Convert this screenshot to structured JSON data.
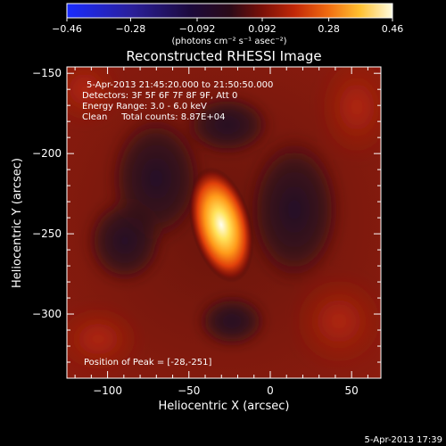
{
  "chart_data": {
    "type": "heatmap",
    "title": "Reconstructed RHESSI Image",
    "xlabel": "Heliocentric X (arcsec)",
    "ylabel": "Heliocentric Y (arcsec)",
    "xlim": [
      -125,
      68
    ],
    "ylim": [
      -340,
      -146
    ],
    "x_ticks": [
      -100,
      -50,
      0,
      50
    ],
    "y_ticks": [
      -150,
      -200,
      -250,
      -300
    ],
    "colorbar": {
      "colormap": "hot-with-blue-negative",
      "range": [
        -0.46,
        0.46
      ],
      "tick_values": [
        -0.46,
        -0.28,
        -0.092,
        0.092,
        0.28,
        0.46
      ],
      "tick_labels": [
        "-0.46",
        "-0.28",
        "-0.092",
        "0.092",
        "0.28",
        "0.46"
      ],
      "units": "(photons cm⁻² s⁻¹ asec⁻²)"
    },
    "info_lines": [
      "5-Apr-2013 21:45:20.000 to 21:50:50.000",
      "Detectors: 3F 5F 6F 7F 8F 9F, Att 0",
      "Energy Range: 3.0 - 6.0 keV",
      "Clean     Total counts: 8.87E+04"
    ],
    "peak_label": "Position of Peak = [-28,-251]",
    "peak_position": [
      -28,
      -251
    ],
    "peak_value": 0.46
  },
  "timestamp": "5-Apr-2013 17:39"
}
